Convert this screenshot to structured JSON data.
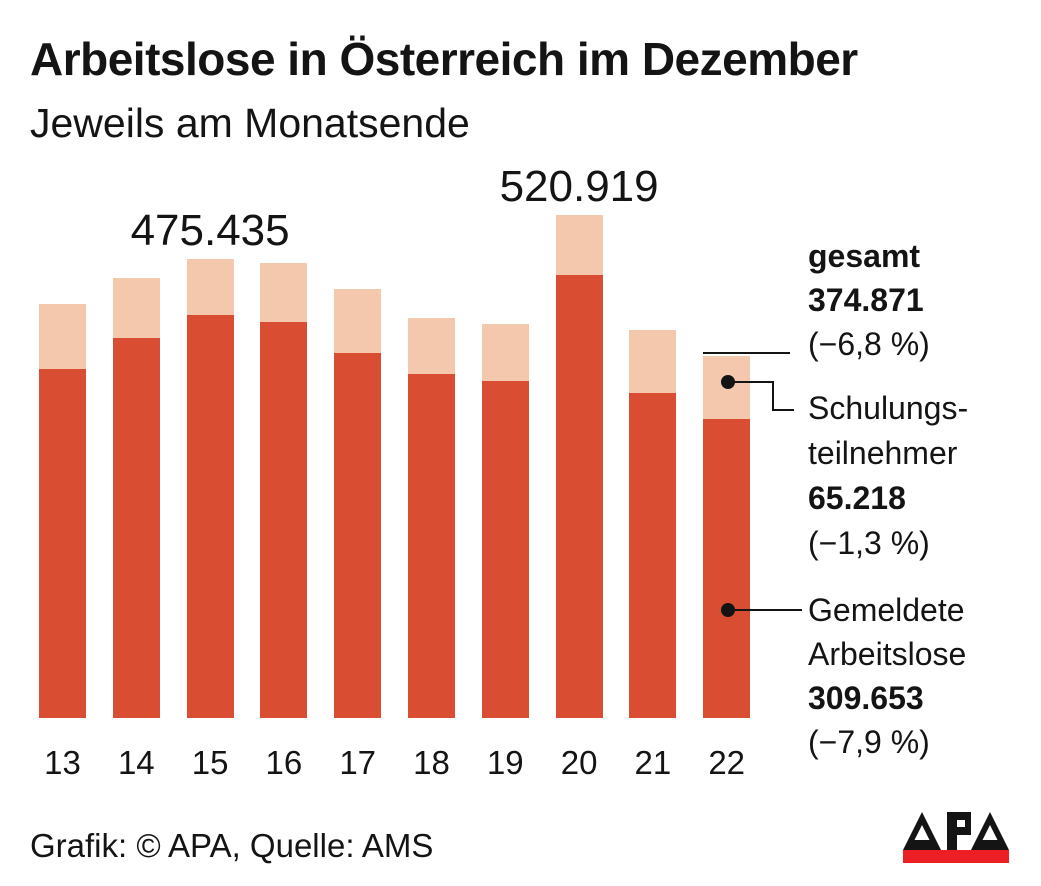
{
  "title": "Arbeitslose in Österreich im Dezember",
  "subtitle": "Jeweils am Monatsende",
  "footer": "Grafik: © APA, Quelle: AMS",
  "logo": {
    "text": "APA",
    "bar_color": "#EC2024",
    "letter_color": "#141414"
  },
  "colors": {
    "gemeldete": "#D94E33",
    "schulung": "#F3C8AD",
    "text": "#141414"
  },
  "legend": {
    "gesamt": {
      "label": "gesamt",
      "value": "374.871",
      "change": "(−6,8 %)"
    },
    "schulung": {
      "label_line1": "Schulungs-",
      "label_line2": "teilnehmer",
      "value": "65.218",
      "change": "(−1,3 %)"
    },
    "gemeldete": {
      "label_line1": "Gemeldete",
      "label_line2": "Arbeitslose",
      "value": "309.653",
      "change": "(−7,9 %)"
    }
  },
  "chart_data": {
    "type": "bar",
    "stacked": true,
    "title": "Arbeitslose in Österreich im Dezember",
    "subtitle": "Jeweils am Monatsende",
    "categories": [
      "13",
      "14",
      "15",
      "16",
      "17",
      "18",
      "19",
      "20",
      "21",
      "22"
    ],
    "series": [
      {
        "name": "Gemeldete Arbeitslose",
        "color": "#D94E33",
        "values": [
          361000,
          393000,
          417000,
          410000,
          378000,
          356000,
          349000,
          459000,
          336000,
          309653
        ]
      },
      {
        "name": "Schulungsteilnehmer",
        "color": "#F3C8AD",
        "values": [
          67000,
          62000,
          58435,
          61000,
          66000,
          58000,
          59000,
          61919,
          66000,
          65218
        ]
      }
    ],
    "totals": [
      428000,
      455000,
      475435,
      471000,
      444000,
      414000,
      408000,
      520919,
      402000,
      374871
    ],
    "annotations": [
      {
        "category": "15",
        "label": "475.435"
      },
      {
        "category": "20",
        "label": "520.919"
      }
    ],
    "ylim": [
      0,
      560000
    ],
    "grid": false,
    "legend_position": "right",
    "legend_values": {
      "gesamt": {
        "value": 374871,
        "change_pct": -6.8
      },
      "schulungsteilnehmer": {
        "value": 65218,
        "change_pct": -1.3
      },
      "gemeldete_arbeitslose": {
        "value": 309653,
        "change_pct": -7.9
      }
    }
  }
}
